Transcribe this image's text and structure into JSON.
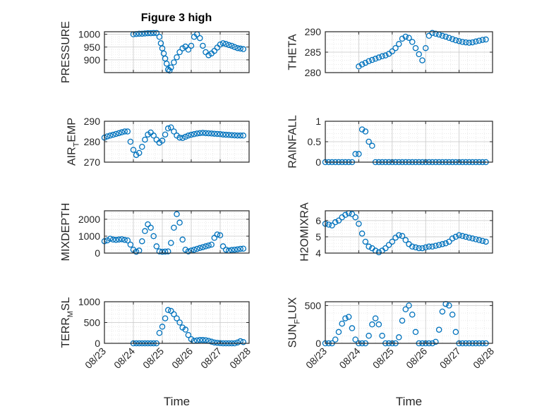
{
  "figure_title": "Figure 3 high",
  "colors": {
    "marker": "#0072BD",
    "axis": "#262626",
    "grid": "#dcdcdc"
  },
  "x_ticks": [
    "08/23",
    "08/24",
    "08/25",
    "08/26",
    "08/27",
    "08/28"
  ],
  "chart_data": [
    {
      "type": "scatter",
      "ylabel": "PRESSURE",
      "ylim": [
        850,
        1010
      ],
      "yticks": [
        900,
        950,
        1000
      ],
      "xlabel": "",
      "grid": true,
      "x": [
        1.0,
        1.1,
        1.2,
        1.3,
        1.4,
        1.5,
        1.6,
        1.7,
        1.8,
        1.9,
        1.95,
        2.0,
        2.05,
        2.1,
        2.15,
        2.2,
        2.25,
        2.3,
        2.4,
        2.5,
        2.6,
        2.7,
        2.8,
        2.9,
        3.0,
        3.1,
        3.2,
        3.3,
        3.4,
        3.5,
        3.6,
        3.7,
        3.8,
        3.9,
        4.0,
        4.1,
        4.2,
        4.3,
        4.4,
        4.5,
        4.6,
        4.7,
        4.8
      ],
      "y": [
        1000,
        1001,
        1002,
        1002,
        1003,
        1004,
        1004,
        1005,
        1005,
        990,
        965,
        945,
        925,
        905,
        885,
        862,
        858,
        870,
        890,
        910,
        930,
        945,
        952,
        940,
        955,
        990,
        1000,
        985,
        955,
        930,
        918,
        925,
        935,
        948,
        960,
        965,
        962,
        958,
        955,
        950,
        946,
        944,
        942
      ]
    },
    {
      "type": "scatter",
      "ylabel": "THETA",
      "ylim": [
        280,
        290
      ],
      "yticks": [
        280,
        285,
        290
      ],
      "xlabel": "",
      "grid": true,
      "x": [
        1.0,
        1.1,
        1.2,
        1.3,
        1.4,
        1.5,
        1.6,
        1.7,
        1.8,
        1.9,
        2.0,
        2.1,
        2.2,
        2.3,
        2.4,
        2.5,
        2.6,
        2.7,
        2.8,
        2.9,
        3.0,
        3.1,
        3.2,
        3.3,
        3.4,
        3.5,
        3.6,
        3.7,
        3.8,
        3.9,
        4.0,
        4.1,
        4.2,
        4.3,
        4.4,
        4.5,
        4.6,
        4.7,
        4.8
      ],
      "y": [
        281.5,
        282,
        282.4,
        282.8,
        283.1,
        283.4,
        283.7,
        284,
        284.2,
        284.6,
        285.2,
        286,
        287,
        288.3,
        288.8,
        288.5,
        287.5,
        286,
        284.5,
        283,
        286,
        289,
        289.7,
        289.5,
        289.3,
        289,
        288.8,
        288.5,
        288.2,
        287.9,
        287.7,
        287.5,
        287.4,
        287.3,
        287.4,
        287.6,
        287.8,
        288,
        288.1
      ]
    },
    {
      "type": "scatter",
      "ylabel": "AIR_TEMP",
      "ylim": [
        270,
        290
      ],
      "yticks": [
        270,
        280,
        290
      ],
      "xlabel": "",
      "grid": true,
      "x": [
        0.0,
        0.1,
        0.2,
        0.3,
        0.4,
        0.5,
        0.6,
        0.7,
        0.8,
        0.9,
        1.0,
        1.1,
        1.2,
        1.3,
        1.4,
        1.5,
        1.6,
        1.7,
        1.8,
        1.9,
        2.0,
        2.1,
        2.2,
        2.3,
        2.4,
        2.5,
        2.6,
        2.7,
        2.8,
        2.9,
        3.0,
        3.1,
        3.2,
        3.3,
        3.4,
        3.5,
        3.6,
        3.7,
        3.8,
        3.9,
        4.0,
        4.1,
        4.2,
        4.3,
        4.4,
        4.5,
        4.6,
        4.7,
        4.8
      ],
      "y": [
        282,
        282.6,
        283,
        283.4,
        283.8,
        284.2,
        284.6,
        285,
        285,
        280,
        276,
        273.5,
        274.5,
        277.5,
        281,
        283.5,
        284.5,
        283,
        281,
        279.5,
        280.5,
        283.5,
        286.5,
        287,
        285,
        283,
        282,
        281.8,
        282.4,
        283,
        283.4,
        283.7,
        284,
        284.2,
        284.3,
        284.2,
        284.1,
        284,
        283.9,
        283.8,
        283.7,
        283.5,
        283.4,
        283.3,
        283.2,
        283.1,
        283,
        283,
        283
      ]
    },
    {
      "type": "scatter",
      "ylabel": "RAINFALL",
      "ylim": [
        0,
        1
      ],
      "yticks": [
        0,
        0.5,
        1
      ],
      "xlabel": "",
      "grid": true,
      "x": [
        0.0,
        0.1,
        0.2,
        0.3,
        0.4,
        0.5,
        0.6,
        0.7,
        0.8,
        0.9,
        1.0,
        1.1,
        1.2,
        1.3,
        1.4,
        1.5,
        1.6,
        1.7,
        1.8,
        1.9,
        2.0,
        2.1,
        2.2,
        2.3,
        2.4,
        2.5,
        2.6,
        2.7,
        2.8,
        2.9,
        3.0,
        3.1,
        3.2,
        3.3,
        3.4,
        3.5,
        3.6,
        3.7,
        3.8,
        3.9,
        4.0,
        4.1,
        4.2,
        4.3,
        4.4,
        4.5,
        4.6,
        4.7,
        4.8
      ],
      "y": [
        0,
        0,
        0,
        0,
        0,
        0,
        0,
        0,
        0,
        0.2,
        0.2,
        0.8,
        0.75,
        0.5,
        0.4,
        0,
        0,
        0,
        0,
        0,
        0,
        0,
        0,
        0,
        0,
        0,
        0,
        0,
        0,
        0,
        0,
        0,
        0,
        0,
        0,
        0,
        0,
        0,
        0,
        0,
        0,
        0,
        0,
        0,
        0,
        0,
        0,
        0,
        0
      ]
    },
    {
      "type": "scatter",
      "ylabel": "MIXDEPTH",
      "ylim": [
        0,
        2500
      ],
      "yticks": [
        0,
        1000,
        2000
      ],
      "xlabel": "",
      "grid": true,
      "x": [
        0.0,
        0.1,
        0.2,
        0.3,
        0.4,
        0.5,
        0.6,
        0.7,
        0.8,
        0.9,
        1.0,
        1.1,
        1.2,
        1.3,
        1.4,
        1.5,
        1.6,
        1.7,
        1.8,
        1.9,
        2.0,
        2.1,
        2.2,
        2.3,
        2.4,
        2.5,
        2.6,
        2.7,
        2.8,
        2.9,
        3.0,
        3.1,
        3.2,
        3.3,
        3.4,
        3.5,
        3.6,
        3.7,
        3.8,
        3.9,
        4.0,
        4.1,
        4.2,
        4.3,
        4.4,
        4.5,
        4.6,
        4.7,
        4.8
      ],
      "y": [
        700,
        750,
        850,
        800,
        780,
        800,
        820,
        780,
        750,
        500,
        200,
        80,
        150,
        700,
        1300,
        1700,
        1500,
        1000,
        400,
        100,
        80,
        90,
        100,
        600,
        1500,
        2300,
        1800,
        800,
        200,
        100,
        150,
        200,
        250,
        300,
        350,
        400,
        450,
        500,
        900,
        1100,
        1050,
        400,
        200,
        150,
        180,
        200,
        220,
        250,
        260
      ]
    },
    {
      "type": "scatter",
      "ylabel": "H2OMIXRA",
      "ylim": [
        4,
        6.6
      ],
      "yticks": [
        4,
        5,
        6
      ],
      "xlabel": "",
      "grid": true,
      "x": [
        0.0,
        0.1,
        0.2,
        0.3,
        0.4,
        0.5,
        0.6,
        0.7,
        0.8,
        0.9,
        1.0,
        1.1,
        1.2,
        1.3,
        1.4,
        1.5,
        1.6,
        1.7,
        1.8,
        1.9,
        2.0,
        2.1,
        2.2,
        2.3,
        2.4,
        2.5,
        2.6,
        2.7,
        2.8,
        2.9,
        3.0,
        3.1,
        3.2,
        3.3,
        3.4,
        3.5,
        3.6,
        3.7,
        3.8,
        3.9,
        4.0,
        4.1,
        4.2,
        4.3,
        4.4,
        4.5,
        4.6,
        4.7,
        4.8
      ],
      "y": [
        5.8,
        5.75,
        5.7,
        5.9,
        6,
        6.2,
        6.35,
        6.45,
        6.4,
        6.2,
        5.8,
        5.2,
        4.7,
        4.4,
        4.3,
        4.15,
        4.05,
        4.15,
        4.3,
        4.5,
        4.7,
        4.95,
        5.1,
        5.05,
        4.8,
        4.55,
        4.4,
        4.35,
        4.3,
        4.3,
        4.35,
        4.4,
        4.4,
        4.45,
        4.5,
        4.55,
        4.6,
        4.7,
        4.9,
        5,
        5.1,
        5.05,
        5,
        4.95,
        4.9,
        4.85,
        4.8,
        4.75,
        4.7
      ]
    },
    {
      "type": "scatter",
      "ylabel": "TERR_MSL",
      "ylim": [
        0,
        1000
      ],
      "yticks": [
        0,
        500,
        1000
      ],
      "xlabel": "Time",
      "grid": true,
      "x": [
        1.0,
        1.1,
        1.2,
        1.3,
        1.4,
        1.5,
        1.6,
        1.7,
        1.8,
        1.9,
        2.0,
        2.1,
        2.2,
        2.3,
        2.4,
        2.5,
        2.6,
        2.7,
        2.8,
        2.9,
        3.0,
        3.1,
        3.2,
        3.3,
        3.4,
        3.5,
        3.6,
        3.7,
        3.8,
        3.9,
        4.0,
        4.1,
        4.2,
        4.3,
        4.4,
        4.5,
        4.6,
        4.7,
        4.8
      ],
      "y": [
        0,
        0,
        0,
        0,
        0,
        0,
        0,
        0,
        0,
        250,
        400,
        600,
        800,
        780,
        700,
        600,
        500,
        380,
        330,
        200,
        100,
        60,
        70,
        80,
        80,
        75,
        60,
        40,
        20,
        10,
        5,
        0,
        0,
        0,
        0,
        0,
        20,
        50,
        30
      ]
    },
    {
      "type": "scatter",
      "ylabel": "SUN_FLUX",
      "ylim": [
        0,
        550
      ],
      "yticks": [
        0,
        500
      ],
      "xlabel": "Time",
      "grid": true,
      "x": [
        0.0,
        0.1,
        0.2,
        0.3,
        0.4,
        0.5,
        0.6,
        0.7,
        0.8,
        0.9,
        1.0,
        1.1,
        1.2,
        1.3,
        1.4,
        1.5,
        1.6,
        1.7,
        1.8,
        1.9,
        2.0,
        2.1,
        2.2,
        2.3,
        2.4,
        2.5,
        2.6,
        2.7,
        2.8,
        2.9,
        3.0,
        3.1,
        3.2,
        3.3,
        3.4,
        3.5,
        3.6,
        3.7,
        3.8,
        3.9,
        4.0,
        4.1,
        4.2,
        4.3,
        4.4,
        4.5,
        4.6,
        4.7,
        4.8
      ],
      "y": [
        0,
        0,
        0,
        50,
        150,
        260,
        330,
        350,
        200,
        50,
        0,
        0,
        0,
        100,
        250,
        330,
        250,
        100,
        0,
        0,
        0,
        0,
        80,
        300,
        450,
        500,
        380,
        150,
        0,
        0,
        0,
        0,
        0,
        20,
        180,
        420,
        520,
        500,
        380,
        150,
        0,
        0,
        0,
        0,
        0,
        0,
        0,
        0,
        0
      ]
    }
  ]
}
